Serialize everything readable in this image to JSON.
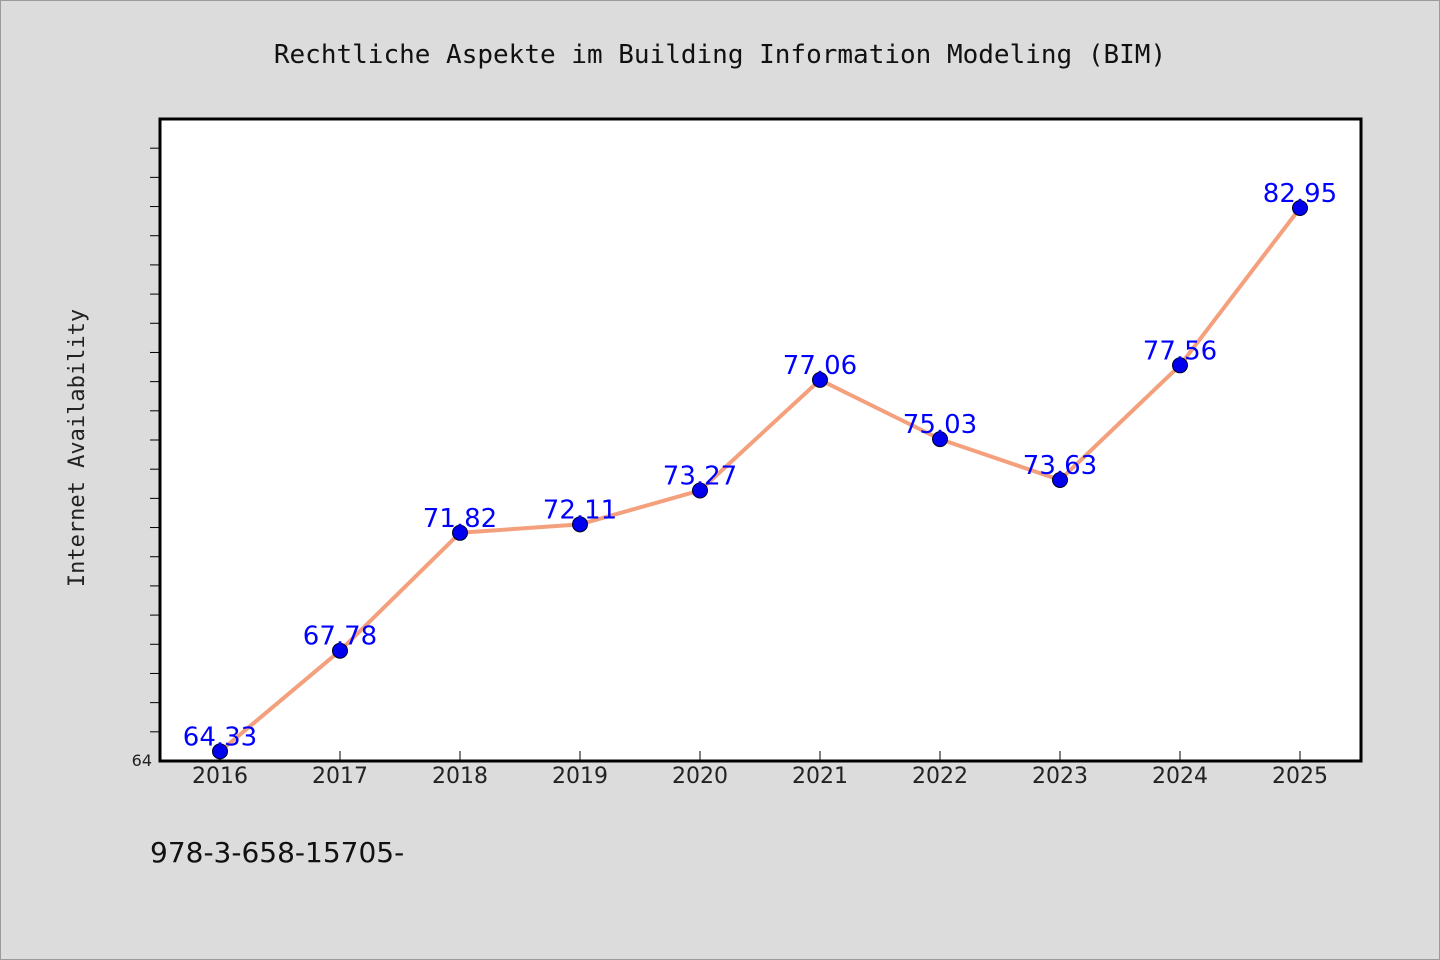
{
  "chart_data": {
    "type": "line",
    "title": "Rechtliche Aspekte im Building Information Modeling (BIM)",
    "ylabel": "Internet Availability",
    "xlabel": "",
    "categories": [
      "2016",
      "2017",
      "2018",
      "2019",
      "2020",
      "2021",
      "2022",
      "2023",
      "2024",
      "2025"
    ],
    "series": [
      {
        "values": [
          64.33,
          67.78,
          71.82,
          72.11,
          73.27,
          77.06,
          75.03,
          73.63,
          77.56,
          82.95
        ],
        "line_color": "#f4a07c",
        "marker_color": "#0000ee"
      }
    ],
    "data_labels": [
      "64.33",
      "67.78",
      "71.82",
      "72.11",
      "73.27",
      "77.06",
      "75.03",
      "73.63",
      "77.56",
      "82.95"
    ],
    "data_label_color": "#0000ff",
    "ylim": [
      64,
      86
    ],
    "y_tick_label": "64",
    "grid": false,
    "legend": "none"
  },
  "footer_text": "978-3-658-15705-"
}
